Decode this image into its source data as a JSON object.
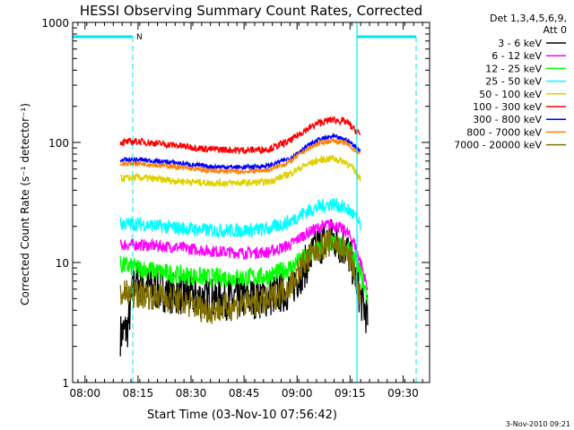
{
  "chart_data": {
    "type": "line",
    "title": "HESSI Observing Summary Count Rates, Corrected",
    "xlabel": "Start Time (03-Nov-10 07:56:42)",
    "ylabel": "Corrected Count Rate (s⁻¹ detector⁻¹)",
    "yscale": "log",
    "ylim": [
      1,
      1000
    ],
    "xlim_minutes": [
      -3.5,
      97.5
    ],
    "x_ticks": [
      "08:00",
      "08:15",
      "08:30",
      "08:45",
      "09:00",
      "09:15",
      "09:30"
    ],
    "y_ticks": [
      "1",
      "10",
      "100",
      "1000"
    ],
    "legend_title": [
      "Det 1,3,4,5,6,9,",
      "Att 0"
    ],
    "legend_position": "right",
    "x_unit": "minutes after 08:00",
    "series": [
      {
        "name": "3 - 6 keV",
        "color": "#000000",
        "noise": 0.18,
        "points": [
          [
            10,
            2.5
          ],
          [
            12,
            2.8
          ],
          [
            14,
            7
          ],
          [
            20,
            6
          ],
          [
            26,
            5.5
          ],
          [
            35,
            5
          ],
          [
            45,
            5
          ],
          [
            52,
            5.2
          ],
          [
            58,
            6
          ],
          [
            62,
            9
          ],
          [
            66,
            14
          ],
          [
            70,
            16
          ],
          [
            74,
            13
          ],
          [
            76,
            9
          ],
          [
            78,
            5
          ],
          [
            80,
            3.5
          ]
        ]
      },
      {
        "name": "6 - 12 keV",
        "color": "#ff00ff",
        "noise": 0.05,
        "points": [
          [
            10,
            14
          ],
          [
            15,
            14
          ],
          [
            25,
            13.5
          ],
          [
            35,
            12.5
          ],
          [
            45,
            12
          ],
          [
            52,
            12.2
          ],
          [
            58,
            14
          ],
          [
            62,
            17
          ],
          [
            66,
            19.5
          ],
          [
            70,
            21
          ],
          [
            74,
            18
          ],
          [
            76,
            15
          ],
          [
            78,
            10
          ],
          [
            80,
            6
          ]
        ]
      },
      {
        "name": "12 - 25 keV",
        "color": "#00ff00",
        "noise": 0.08,
        "points": [
          [
            10,
            9.5
          ],
          [
            15,
            9
          ],
          [
            25,
            8
          ],
          [
            35,
            7.5
          ],
          [
            45,
            7.5
          ],
          [
            52,
            7.7
          ],
          [
            58,
            9
          ],
          [
            62,
            11
          ],
          [
            66,
            13
          ],
          [
            70,
            14.5
          ],
          [
            74,
            13
          ],
          [
            76,
            11
          ],
          [
            78,
            8
          ],
          [
            80,
            5
          ]
        ]
      },
      {
        "name": "25 - 50 keV",
        "color": "#00ffff",
        "noise": 0.06,
        "points": [
          [
            10,
            21
          ],
          [
            15,
            21
          ],
          [
            25,
            19.5
          ],
          [
            35,
            18.5
          ],
          [
            45,
            18.5
          ],
          [
            52,
            19
          ],
          [
            58,
            22
          ],
          [
            62,
            26
          ],
          [
            66,
            29
          ],
          [
            70,
            31
          ],
          [
            74,
            28
          ],
          [
            76,
            25
          ],
          [
            78,
            20
          ]
        ]
      },
      {
        "name": "50 - 100 keV",
        "color": "#e0d000",
        "noise": 0.03,
        "points": [
          [
            10,
            50
          ],
          [
            15,
            51
          ],
          [
            25,
            48
          ],
          [
            35,
            46
          ],
          [
            45,
            46
          ],
          [
            52,
            47
          ],
          [
            58,
            55
          ],
          [
            62,
            64
          ],
          [
            66,
            71
          ],
          [
            70,
            74
          ],
          [
            74,
            68
          ],
          [
            76,
            60
          ],
          [
            78,
            50
          ]
        ]
      },
      {
        "name": "100 - 300 keV",
        "color": "#ff0000",
        "noise": 0.03,
        "points": [
          [
            10,
            100
          ],
          [
            15,
            102
          ],
          [
            25,
            95
          ],
          [
            35,
            88
          ],
          [
            45,
            86
          ],
          [
            52,
            88
          ],
          [
            58,
            103
          ],
          [
            62,
            125
          ],
          [
            66,
            145
          ],
          [
            70,
            155
          ],
          [
            74,
            148
          ],
          [
            76,
            130
          ],
          [
            78,
            115
          ]
        ]
      },
      {
        "name": "300 - 800 keV",
        "color": "#0000ff",
        "noise": 0.02,
        "points": [
          [
            10,
            71
          ],
          [
            15,
            72
          ],
          [
            25,
            68
          ],
          [
            35,
            63
          ],
          [
            45,
            62
          ],
          [
            52,
            64
          ],
          [
            58,
            74
          ],
          [
            62,
            90
          ],
          [
            66,
            105
          ],
          [
            70,
            112
          ],
          [
            74,
            105
          ],
          [
            76,
            95
          ],
          [
            78,
            85
          ]
        ]
      },
      {
        "name": "800 - 7000 keV",
        "color": "#ff8000",
        "noise": 0.02,
        "points": [
          [
            10,
            66
          ],
          [
            15,
            67
          ],
          [
            25,
            63
          ],
          [
            35,
            58
          ],
          [
            45,
            57
          ],
          [
            52,
            59
          ],
          [
            58,
            69
          ],
          [
            62,
            85
          ],
          [
            66,
            98
          ],
          [
            70,
            104
          ],
          [
            74,
            98
          ],
          [
            76,
            88
          ],
          [
            78,
            80
          ]
        ]
      },
      {
        "name": "7000 - 20000 keV",
        "color": "#807000",
        "noise": 0.12,
        "points": [
          [
            10,
            5.5
          ],
          [
            15,
            5.5
          ],
          [
            25,
            5
          ],
          [
            35,
            4
          ],
          [
            45,
            4.5
          ],
          [
            52,
            4.8
          ],
          [
            58,
            6.5
          ],
          [
            62,
            10
          ],
          [
            66,
            13
          ],
          [
            70,
            15
          ],
          [
            74,
            12
          ],
          [
            76,
            9
          ],
          [
            78,
            5
          ]
        ]
      }
    ],
    "n_markers": [
      {
        "label": "N"
      }
    ],
    "footer_timestamp": "3-Nov-2010 09:21"
  }
}
